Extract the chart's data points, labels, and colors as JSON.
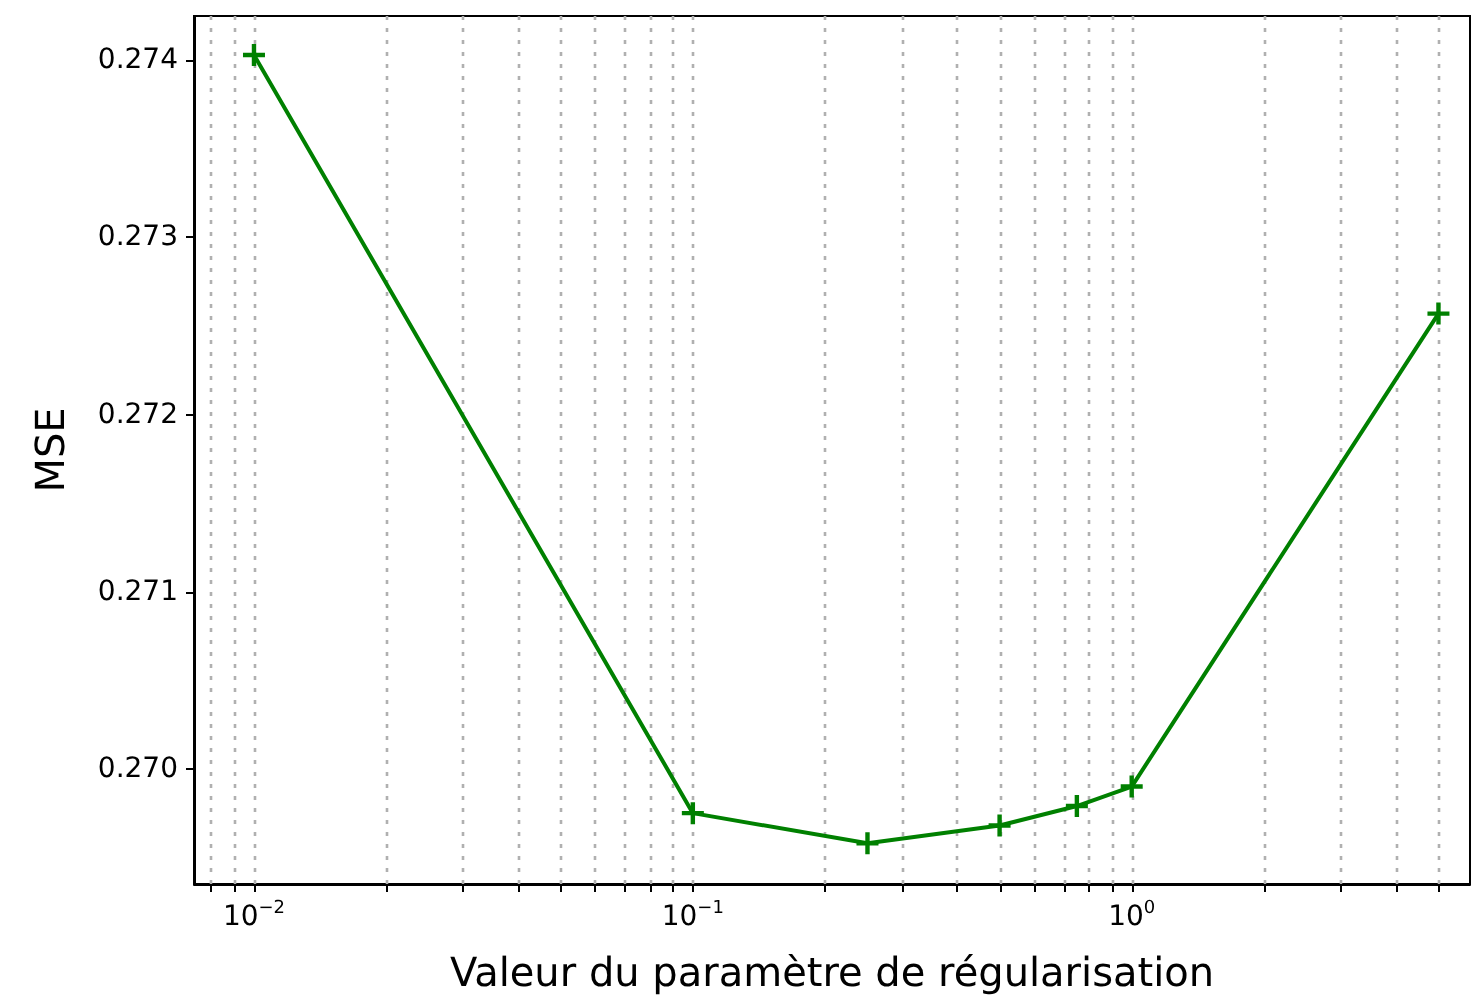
{
  "chart_data": {
    "type": "line",
    "xlabel": "Valeur du paramètre de régularisation",
    "ylabel": "MSE",
    "x": [
      0.01,
      0.1,
      0.25,
      0.5,
      0.75,
      1,
      5
    ],
    "series": [
      {
        "color": "#008000",
        "values": [
          0.27403,
          0.26975,
          0.26958,
          0.26968,
          0.26979,
          0.2699,
          0.27257
        ]
      }
    ],
    "log": "x",
    "marker": "cross",
    "line_style": "solid",
    "grid": "x",
    "xlim": [
      0.0073,
      5.9
    ],
    "ylim": [
      0.26935,
      0.27425
    ],
    "xticks": [
      {
        "value": 0.008,
        "label": null
      },
      {
        "value": 0.009,
        "label": null
      },
      {
        "value": 0.01,
        "label": "10$^{−2}$"
      },
      {
        "value": 0.02,
        "label": null
      },
      {
        "value": 0.03,
        "label": null
      },
      {
        "value": 0.04,
        "label": null
      },
      {
        "value": 0.05,
        "label": null
      },
      {
        "value": 0.06,
        "label": null
      },
      {
        "value": 0.07,
        "label": null
      },
      {
        "value": 0.08,
        "label": null
      },
      {
        "value": 0.09,
        "label": null
      },
      {
        "value": 0.1,
        "label": "10$^{−1}$"
      },
      {
        "value": 0.2,
        "label": null
      },
      {
        "value": 0.3,
        "label": null
      },
      {
        "value": 0.4,
        "label": null
      },
      {
        "value": 0.5,
        "label": null
      },
      {
        "value": 0.6,
        "label": null
      },
      {
        "value": 0.7,
        "label": null
      },
      {
        "value": 0.8,
        "label": null
      },
      {
        "value": 0.9,
        "label": null
      },
      {
        "value": 1,
        "label": "10$^{0}$"
      },
      {
        "value": 2,
        "label": null
      },
      {
        "value": 3,
        "label": null
      },
      {
        "value": 4,
        "label": null
      },
      {
        "value": 5,
        "label": null
      }
    ],
    "yticks": [
      {
        "value": 0.27,
        "label": "0.270"
      },
      {
        "value": 0.271,
        "label": "0.271"
      },
      {
        "value": 0.272,
        "label": "0.272"
      },
      {
        "value": 0.273,
        "label": "0.273"
      },
      {
        "value": 0.274,
        "label": "0.274"
      }
    ]
  }
}
